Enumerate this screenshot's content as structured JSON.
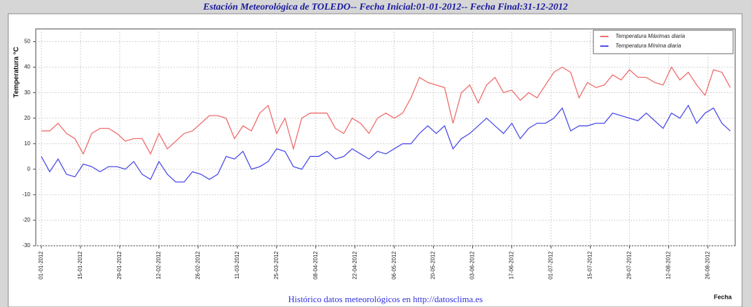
{
  "chart_data": {
    "type": "line",
    "title": "Estación Meteorológica de TOLEDO-- Fecha Inicial:01-01-2012-- Fecha Final:31-12-2012",
    "ylabel": "Temperatura °C",
    "xlabel": "Fecha",
    "footer": "Histórico datos meteorológicos en http://datosclima.es",
    "legend": "upper right",
    "grid": true,
    "ylim": [
      -30,
      55
    ],
    "yticks": [
      -30,
      -20,
      -10,
      0,
      10,
      20,
      30,
      40,
      50
    ],
    "xlim": [
      "01-01-2012",
      "04-09-2012"
    ],
    "xticks": [
      "01-01-2012",
      "15-01-2012",
      "29-01-2012",
      "12-02-2012",
      "26-02-2012",
      "11-03-2012",
      "25-03-2012",
      "08-04-2012",
      "22-04-2012",
      "06-05-2012",
      "20-05-2012",
      "03-06-2012",
      "17-06-2012",
      "01-07-2012",
      "15-07-2012",
      "29-07-2012",
      "12-08-2012",
      "26-08-2012"
    ],
    "x": [
      "01-01-2012",
      "04-01-2012",
      "07-01-2012",
      "10-01-2012",
      "13-01-2012",
      "16-01-2012",
      "19-01-2012",
      "22-01-2012",
      "25-01-2012",
      "28-01-2012",
      "31-01-2012",
      "03-02-2012",
      "06-02-2012",
      "09-02-2012",
      "12-02-2012",
      "15-02-2012",
      "18-02-2012",
      "21-02-2012",
      "24-02-2012",
      "27-02-2012",
      "01-03-2012",
      "04-03-2012",
      "07-03-2012",
      "10-03-2012",
      "13-03-2012",
      "16-03-2012",
      "19-03-2012",
      "22-03-2012",
      "25-03-2012",
      "28-03-2012",
      "31-03-2012",
      "03-04-2012",
      "06-04-2012",
      "09-04-2012",
      "12-04-2012",
      "15-04-2012",
      "18-04-2012",
      "21-04-2012",
      "24-04-2012",
      "27-04-2012",
      "30-04-2012",
      "03-05-2012",
      "06-05-2012",
      "09-05-2012",
      "12-05-2012",
      "15-05-2012",
      "18-05-2012",
      "21-05-2012",
      "24-05-2012",
      "27-05-2012",
      "30-05-2012",
      "02-06-2012",
      "05-06-2012",
      "08-06-2012",
      "11-06-2012",
      "14-06-2012",
      "17-06-2012",
      "20-06-2012",
      "23-06-2012",
      "26-06-2012",
      "29-06-2012",
      "02-07-2012",
      "05-07-2012",
      "08-07-2012",
      "11-07-2012",
      "14-07-2012",
      "17-07-2012",
      "20-07-2012",
      "23-07-2012",
      "26-07-2012",
      "29-07-2012",
      "01-08-2012",
      "04-08-2012",
      "07-08-2012",
      "10-08-2012",
      "13-08-2012",
      "16-08-2012",
      "19-08-2012",
      "22-08-2012",
      "25-08-2012",
      "28-08-2012",
      "31-08-2012",
      "03-09-2012"
    ],
    "series": [
      {
        "name": "Temperatura Máximas diaria",
        "color": "#f06a6a",
        "values": [
          15,
          15,
          18,
          14,
          12,
          6,
          14,
          16,
          16,
          14,
          11,
          12,
          12,
          6,
          14,
          8,
          11,
          14,
          15,
          18,
          21,
          21,
          20,
          12,
          17,
          15,
          22,
          25,
          14,
          20,
          8,
          20,
          22,
          22,
          22,
          16,
          14,
          20,
          18,
          14,
          20,
          22,
          20,
          22,
          28,
          36,
          34,
          33,
          32,
          18,
          30,
          33,
          26,
          33,
          36,
          30,
          31,
          27,
          30,
          28,
          33,
          38,
          40,
          38,
          28,
          34,
          32,
          33,
          37,
          35,
          39,
          36,
          36,
          34,
          33,
          40,
          35,
          38,
          33,
          29,
          39,
          38,
          32
        ]
      },
      {
        "name": "Temperatura Mínima diaria",
        "color": "#4a4ae8",
        "values": [
          5,
          -1,
          4,
          -2,
          -3,
          2,
          1,
          -1,
          1,
          1,
          0,
          3,
          -2,
          -4,
          3,
          -2,
          -5,
          -5,
          -1,
          -2,
          -4,
          -2,
          5,
          4,
          7,
          0,
          1,
          3,
          8,
          7,
          1,
          0,
          5,
          5,
          7,
          4,
          5,
          8,
          6,
          4,
          7,
          6,
          8,
          10,
          10,
          14,
          17,
          14,
          17,
          8,
          12,
          14,
          17,
          20,
          17,
          14,
          18,
          12,
          16,
          18,
          18,
          20,
          24,
          15,
          17,
          17,
          18,
          18,
          22,
          21,
          20,
          19,
          22,
          19,
          16,
          22,
          20,
          25,
          18,
          22,
          24,
          18,
          15
        ]
      }
    ]
  }
}
